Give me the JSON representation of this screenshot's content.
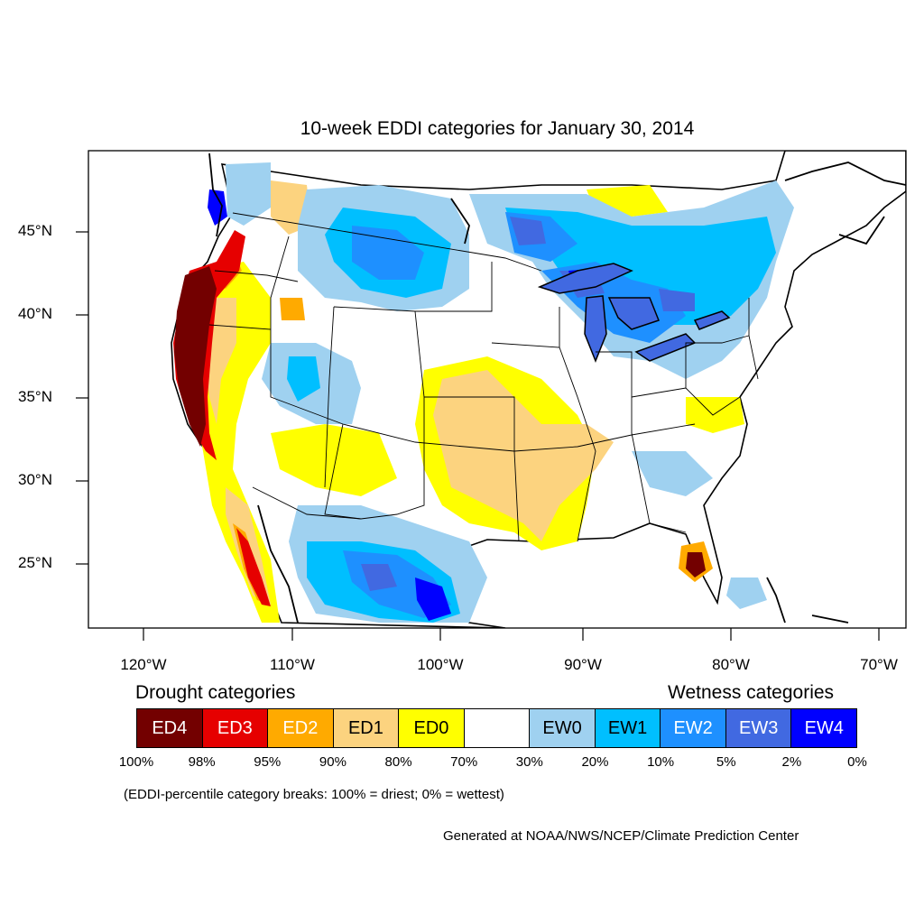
{
  "title": "10-week EDDI categories for January 30, 2014",
  "lat_labels": [
    "45°N",
    "40°N",
    "35°N",
    "30°N",
    "25°N"
  ],
  "lon_labels": [
    "120°W",
    "110°W",
    "100°W",
    "90°W",
    "80°W",
    "70°W"
  ],
  "legend": {
    "drought_heading": "Drought categories",
    "wetness_heading": "Wetness categories",
    "categories": [
      {
        "label": "ED4",
        "color": "#730000",
        "text_color": "#ffffff"
      },
      {
        "label": "ED3",
        "color": "#e60000",
        "text_color": "#ffffff"
      },
      {
        "label": "ED2",
        "color": "#ffaa00",
        "text_color": "#ffffff"
      },
      {
        "label": "ED1",
        "color": "#fcd37f",
        "text_color": "#000000"
      },
      {
        "label": "ED0",
        "color": "#ffff00",
        "text_color": "#000000"
      },
      {
        "label": "",
        "color": "#ffffff",
        "text_color": "#000000"
      },
      {
        "label": "EW0",
        "color": "#9fd1f0",
        "text_color": "#000000"
      },
      {
        "label": "EW1",
        "color": "#00bfff",
        "text_color": "#000000"
      },
      {
        "label": "EW2",
        "color": "#1e90ff",
        "text_color": "#ffffff"
      },
      {
        "label": "EW3",
        "color": "#4169e1",
        "text_color": "#ffffff"
      },
      {
        "label": "EW4",
        "color": "#0000ff",
        "text_color": "#ffffff"
      }
    ],
    "percent_breaks": [
      "100%",
      "98%",
      "95%",
      "90%",
      "80%",
      "70%",
      "30%",
      "20%",
      "10%",
      "5%",
      "2%",
      "0%"
    ]
  },
  "note": "(EDDI-percentile category breaks: 100% = driest; 0% = wettest)",
  "credit": "Generated at NOAA/NWS/NCEP/Climate Prediction Center"
}
